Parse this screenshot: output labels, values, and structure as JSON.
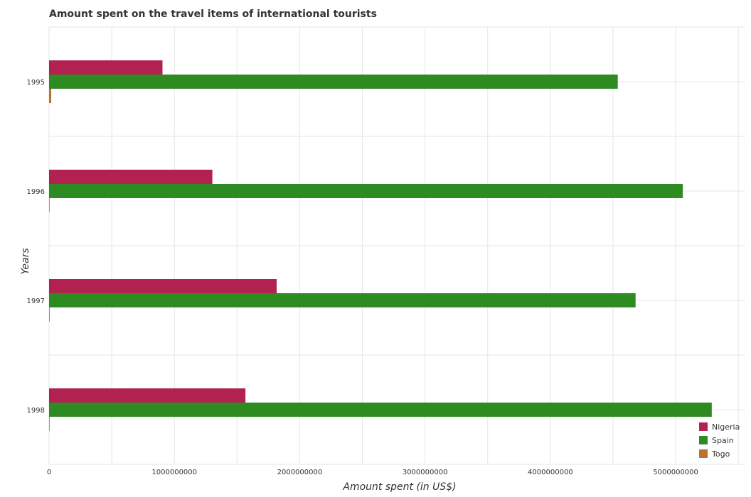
{
  "chart_data": {
    "type": "bar",
    "orientation": "horizontal",
    "title": "Amount spent on the travel items of international tourists",
    "xlabel": "Amount spent (in US$)",
    "ylabel": "Years",
    "categories": [
      "1995",
      "1996",
      "1997",
      "1998"
    ],
    "series": [
      {
        "name": "Nigeria",
        "color": "#b22250",
        "values": [
          905000000,
          1303000000,
          1816000000,
          1567000000
        ]
      },
      {
        "name": "Spain",
        "color": "#2e8b22",
        "values": [
          4538000000,
          5057000000,
          4680000000,
          5288000000
        ]
      },
      {
        "name": "Togo",
        "color": "#b87333",
        "values": [
          17000000,
          3000000,
          5000000,
          4000000
        ]
      }
    ],
    "x_ticks": [
      0,
      1000000000,
      2000000000,
      3000000000,
      4000000000,
      5000000000
    ],
    "x_tick_labels": [
      "0",
      "1000000000",
      "2000000000",
      "3000000000",
      "4000000000",
      "5000000000"
    ],
    "xlim": [
      0,
      5550000000
    ],
    "grid": true,
    "legend_position": "bottom-right"
  }
}
